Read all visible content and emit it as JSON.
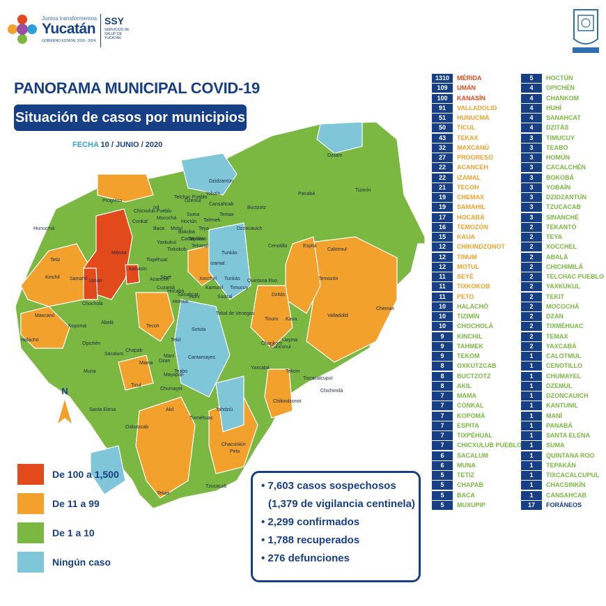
{
  "header": {
    "logo_top_text": "Juntos transformemos",
    "logo_main_text": "Yucatán",
    "logo_bottom_text": "GOBIERNO ESTATAL 2018 - 2024",
    "ssy_label": "SSY",
    "ssy_sub": "SERVICIOS DE SALUD DE YUCATÁN"
  },
  "title": "PANORAMA MUNICIPAL COVID-19",
  "subtitle": "Situación de casos por municipios",
  "fecha_label": "FECHA",
  "fecha_value": "10 / JUNIO / 2020",
  "colors": {
    "high": "#e2491b",
    "mid": "#f1a12c",
    "low": "#7bb842",
    "none": "#7ec6d8",
    "navy": "#173f86"
  },
  "legend": [
    {
      "label": "De 100 a 1,500",
      "level": "high"
    },
    {
      "label": "De 11 a 99",
      "level": "mid"
    },
    {
      "label": "De 1 a 10",
      "level": "low"
    },
    {
      "label": "Ningún caso",
      "level": "none"
    }
  ],
  "compass_label": "N",
  "stats": [
    "• 7,603 casos sospechosos",
    "(1,379 de vigilancia centinela)",
    "• 2,299 confirmados",
    "• 1,788 recuperados",
    "• 276 defunciones"
  ],
  "map_labels": [
    "Progreso",
    "Hunucmá",
    "Tetiz",
    "Kinchil",
    "Samahil",
    "Umán",
    "Mérida",
    "Kanasín",
    "Maxcanú",
    "Halachó",
    "Kopomá",
    "Chocholá",
    "Opichén",
    "Abalá",
    "Tecoh",
    "Muna",
    "Sacalum",
    "Chapab",
    "Mama",
    "Ticul",
    "Santa Elena",
    "Oxkutzcab",
    "Tekax",
    "Tzucacab",
    "Peto",
    "Chacsinkín",
    "Tixméhuac",
    "Tahdziú",
    "Yaxcabá",
    "Tekom",
    "Chikindzonot",
    "Chichimilá",
    "Tixcacalcupul",
    "Valladolid",
    "Chemax",
    "Temozón",
    "Tizimín",
    "Panabá",
    "Espita",
    "Calotmul",
    "Cenotillo",
    "Buctzotz",
    "Dzilam",
    "Izamal",
    "Tunkás",
    "Quintana Roo",
    "Dzitás",
    "Kaua",
    "Tinum",
    "Uayma",
    "Cuncunul",
    "Chankom",
    "Telchac Pueblo",
    "Yobaín",
    "Dzidzantún",
    "Dzemul",
    "Motul",
    "Baca",
    "Mocochá",
    "Conkal",
    "Chicxulub Pueblo",
    "Ixil",
    "Cansahcab",
    "Temax",
    "Dzoncauich",
    "Teya",
    "Tepakán",
    "Tekantó",
    "Hoctún",
    "Hocabá",
    "Sanahcat",
    "Huhí",
    "Homún",
    "Cuzamá",
    "Acanceh",
    "Seyé",
    "Tixkokob",
    "Cacalchén",
    "Bokobá",
    "Tekit",
    "Teabo",
    "Chumayel",
    "Mayapán",
    "Akil",
    "Cantamayec",
    "Sotuta",
    "Kantunil",
    "Sudzal",
    "Tekal de Venegas",
    "Timucuy",
    "Tixpéhual",
    "Yaxkukul",
    "Suma",
    "Tahmek",
    "Xocchel",
    "Tunkás",
    "Dzan",
    "Maní"
  ],
  "table_left": [
    {
      "n": "1310",
      "name": "MÉRIDA",
      "level": "high"
    },
    {
      "n": "109",
      "name": "UMÁN",
      "level": "high"
    },
    {
      "n": "100",
      "name": "KANASÍN",
      "level": "high"
    },
    {
      "n": "91",
      "name": "VALLADOLID",
      "level": "mid"
    },
    {
      "n": "51",
      "name": "HUNUCMÁ",
      "level": "mid"
    },
    {
      "n": "50",
      "name": "TICUL",
      "level": "mid"
    },
    {
      "n": "43",
      "name": "TEKAX",
      "level": "mid"
    },
    {
      "n": "32",
      "name": "MAXCANÚ",
      "level": "mid"
    },
    {
      "n": "27",
      "name": "PROGRESO",
      "level": "mid"
    },
    {
      "n": "22",
      "name": "ACANCEH",
      "level": "mid"
    },
    {
      "n": "22",
      "name": "IZAMAL",
      "level": "mid"
    },
    {
      "n": "21",
      "name": "TECOH",
      "level": "mid"
    },
    {
      "n": "19",
      "name": "CHEMAX",
      "level": "mid"
    },
    {
      "n": "19",
      "name": "SAMAHIL",
      "level": "mid"
    },
    {
      "n": "17",
      "name": "HOCABÁ",
      "level": "mid"
    },
    {
      "n": "16",
      "name": "TEMOZÓN",
      "level": "mid"
    },
    {
      "n": "15",
      "name": "KAUA",
      "level": "mid"
    },
    {
      "n": "12",
      "name": "CHIKINDZONOT",
      "level": "mid"
    },
    {
      "n": "12",
      "name": "TINUM",
      "level": "mid"
    },
    {
      "n": "12",
      "name": "MOTUL",
      "level": "mid"
    },
    {
      "n": "11",
      "name": "SEYÉ",
      "level": "mid"
    },
    {
      "n": "11",
      "name": "TIXKOKOB",
      "level": "mid"
    },
    {
      "n": "11",
      "name": "PETO",
      "level": "mid"
    },
    {
      "n": "10",
      "name": "HALACHÓ",
      "level": "low"
    },
    {
      "n": "10",
      "name": "TIZIMÍN",
      "level": "low"
    },
    {
      "n": "10",
      "name": "CHOCHOLÁ",
      "level": "low"
    },
    {
      "n": "9",
      "name": "KINCHIL",
      "level": "low"
    },
    {
      "n": "9",
      "name": "TAHMEK",
      "level": "low"
    },
    {
      "n": "9",
      "name": "TEKOM",
      "level": "low"
    },
    {
      "n": "8",
      "name": "OXKUTZCAB",
      "level": "low"
    },
    {
      "n": "8",
      "name": "BUCTZOTZ",
      "level": "low"
    },
    {
      "n": "8",
      "name": "AKIL",
      "level": "low"
    },
    {
      "n": "7",
      "name": "MAMA",
      "level": "low"
    },
    {
      "n": "7",
      "name": "CONKAL",
      "level": "low"
    },
    {
      "n": "7",
      "name": "KOPOMÁ",
      "level": "low"
    },
    {
      "n": "7",
      "name": "ESPITA",
      "level": "low"
    },
    {
      "n": "7",
      "name": "TIXPÉHUAL",
      "level": "low"
    },
    {
      "n": "7",
      "name": "CHICXULUB PUEBLO",
      "level": "low"
    },
    {
      "n": "6",
      "name": "SACALUM",
      "level": "low"
    },
    {
      "n": "6",
      "name": "MUNA",
      "level": "low"
    },
    {
      "n": "5",
      "name": "TETIZ",
      "level": "low"
    },
    {
      "n": "5",
      "name": "CHAPAB",
      "level": "low"
    },
    {
      "n": "5",
      "name": "BACA",
      "level": "low"
    },
    {
      "n": "5",
      "name": "MUXUPIP",
      "level": "low"
    }
  ],
  "table_right": [
    {
      "n": "5",
      "name": "HOCTÚN",
      "level": "low"
    },
    {
      "n": "4",
      "name": "OPICHÉN",
      "level": "low"
    },
    {
      "n": "4",
      "name": "CHANKOM",
      "level": "low"
    },
    {
      "n": "4",
      "name": "HUHÍ",
      "level": "low"
    },
    {
      "n": "4",
      "name": "SANAHCAT",
      "level": "low"
    },
    {
      "n": "4",
      "name": "DZITÁS",
      "level": "low"
    },
    {
      "n": "3",
      "name": "TIMUCUY",
      "level": "low"
    },
    {
      "n": "3",
      "name": "TEABO",
      "level": "low"
    },
    {
      "n": "3",
      "name": "HOMÚN",
      "level": "low"
    },
    {
      "n": "3",
      "name": "CACALCHÉN",
      "level": "low"
    },
    {
      "n": "3",
      "name": "BOKOBÁ",
      "level": "low"
    },
    {
      "n": "3",
      "name": "YOBAÍN",
      "level": "low"
    },
    {
      "n": "3",
      "name": "DZIDZANTÚN",
      "level": "low"
    },
    {
      "n": "3",
      "name": "TZUCACAB",
      "level": "low"
    },
    {
      "n": "3",
      "name": "SINANCHÉ",
      "level": "low"
    },
    {
      "n": "2",
      "name": "TEKANTÓ",
      "level": "low"
    },
    {
      "n": "2",
      "name": "TEYA",
      "level": "low"
    },
    {
      "n": "2",
      "name": "XOCCHEL",
      "level": "low"
    },
    {
      "n": "2",
      "name": "ABALÁ",
      "level": "low"
    },
    {
      "n": "2",
      "name": "CHICHIMILÁ",
      "level": "low"
    },
    {
      "n": "2",
      "name": "TELCHAC PUEBLO",
      "level": "low"
    },
    {
      "n": "2",
      "name": "YAXKUKUL",
      "level": "low"
    },
    {
      "n": "2",
      "name": "TEKIT",
      "level": "low"
    },
    {
      "n": "2",
      "name": "MOCOCHÁ",
      "level": "low"
    },
    {
      "n": "2",
      "name": "DZAN",
      "level": "low"
    },
    {
      "n": "2",
      "name": "TIXMÉHUAC",
      "level": "low"
    },
    {
      "n": "2",
      "name": "TEMAX",
      "level": "low"
    },
    {
      "n": "2",
      "name": "YAXCABÁ",
      "level": "low"
    },
    {
      "n": "1",
      "name": "CALOTMUL",
      "level": "low"
    },
    {
      "n": "1",
      "name": "CENOTILLO",
      "level": "low"
    },
    {
      "n": "1",
      "name": "CHUMAYEL",
      "level": "low"
    },
    {
      "n": "1",
      "name": "DZEMUL",
      "level": "low"
    },
    {
      "n": "1",
      "name": "DZONCAUICH",
      "level": "low"
    },
    {
      "n": "1",
      "name": "KANTUNIL",
      "level": "low"
    },
    {
      "n": "1",
      "name": "MANÍ",
      "level": "low"
    },
    {
      "n": "1",
      "name": "PANABÁ",
      "level": "low"
    },
    {
      "n": "1",
      "name": "SANTA ELENA",
      "level": "low"
    },
    {
      "n": "1",
      "name": "SUMA",
      "level": "low"
    },
    {
      "n": "1",
      "name": "QUINTANA ROO",
      "level": "low"
    },
    {
      "n": "1",
      "name": "TEPAKÁN",
      "level": "low"
    },
    {
      "n": "1",
      "name": "TIXCACALCUPUL",
      "level": "low"
    },
    {
      "n": "1",
      "name": "CHACSINKÍN",
      "level": "low"
    },
    {
      "n": "1",
      "name": "CANSAHCAB",
      "level": "low"
    },
    {
      "n": "17",
      "name": "FORÁNEOS",
      "level": "blue"
    }
  ]
}
